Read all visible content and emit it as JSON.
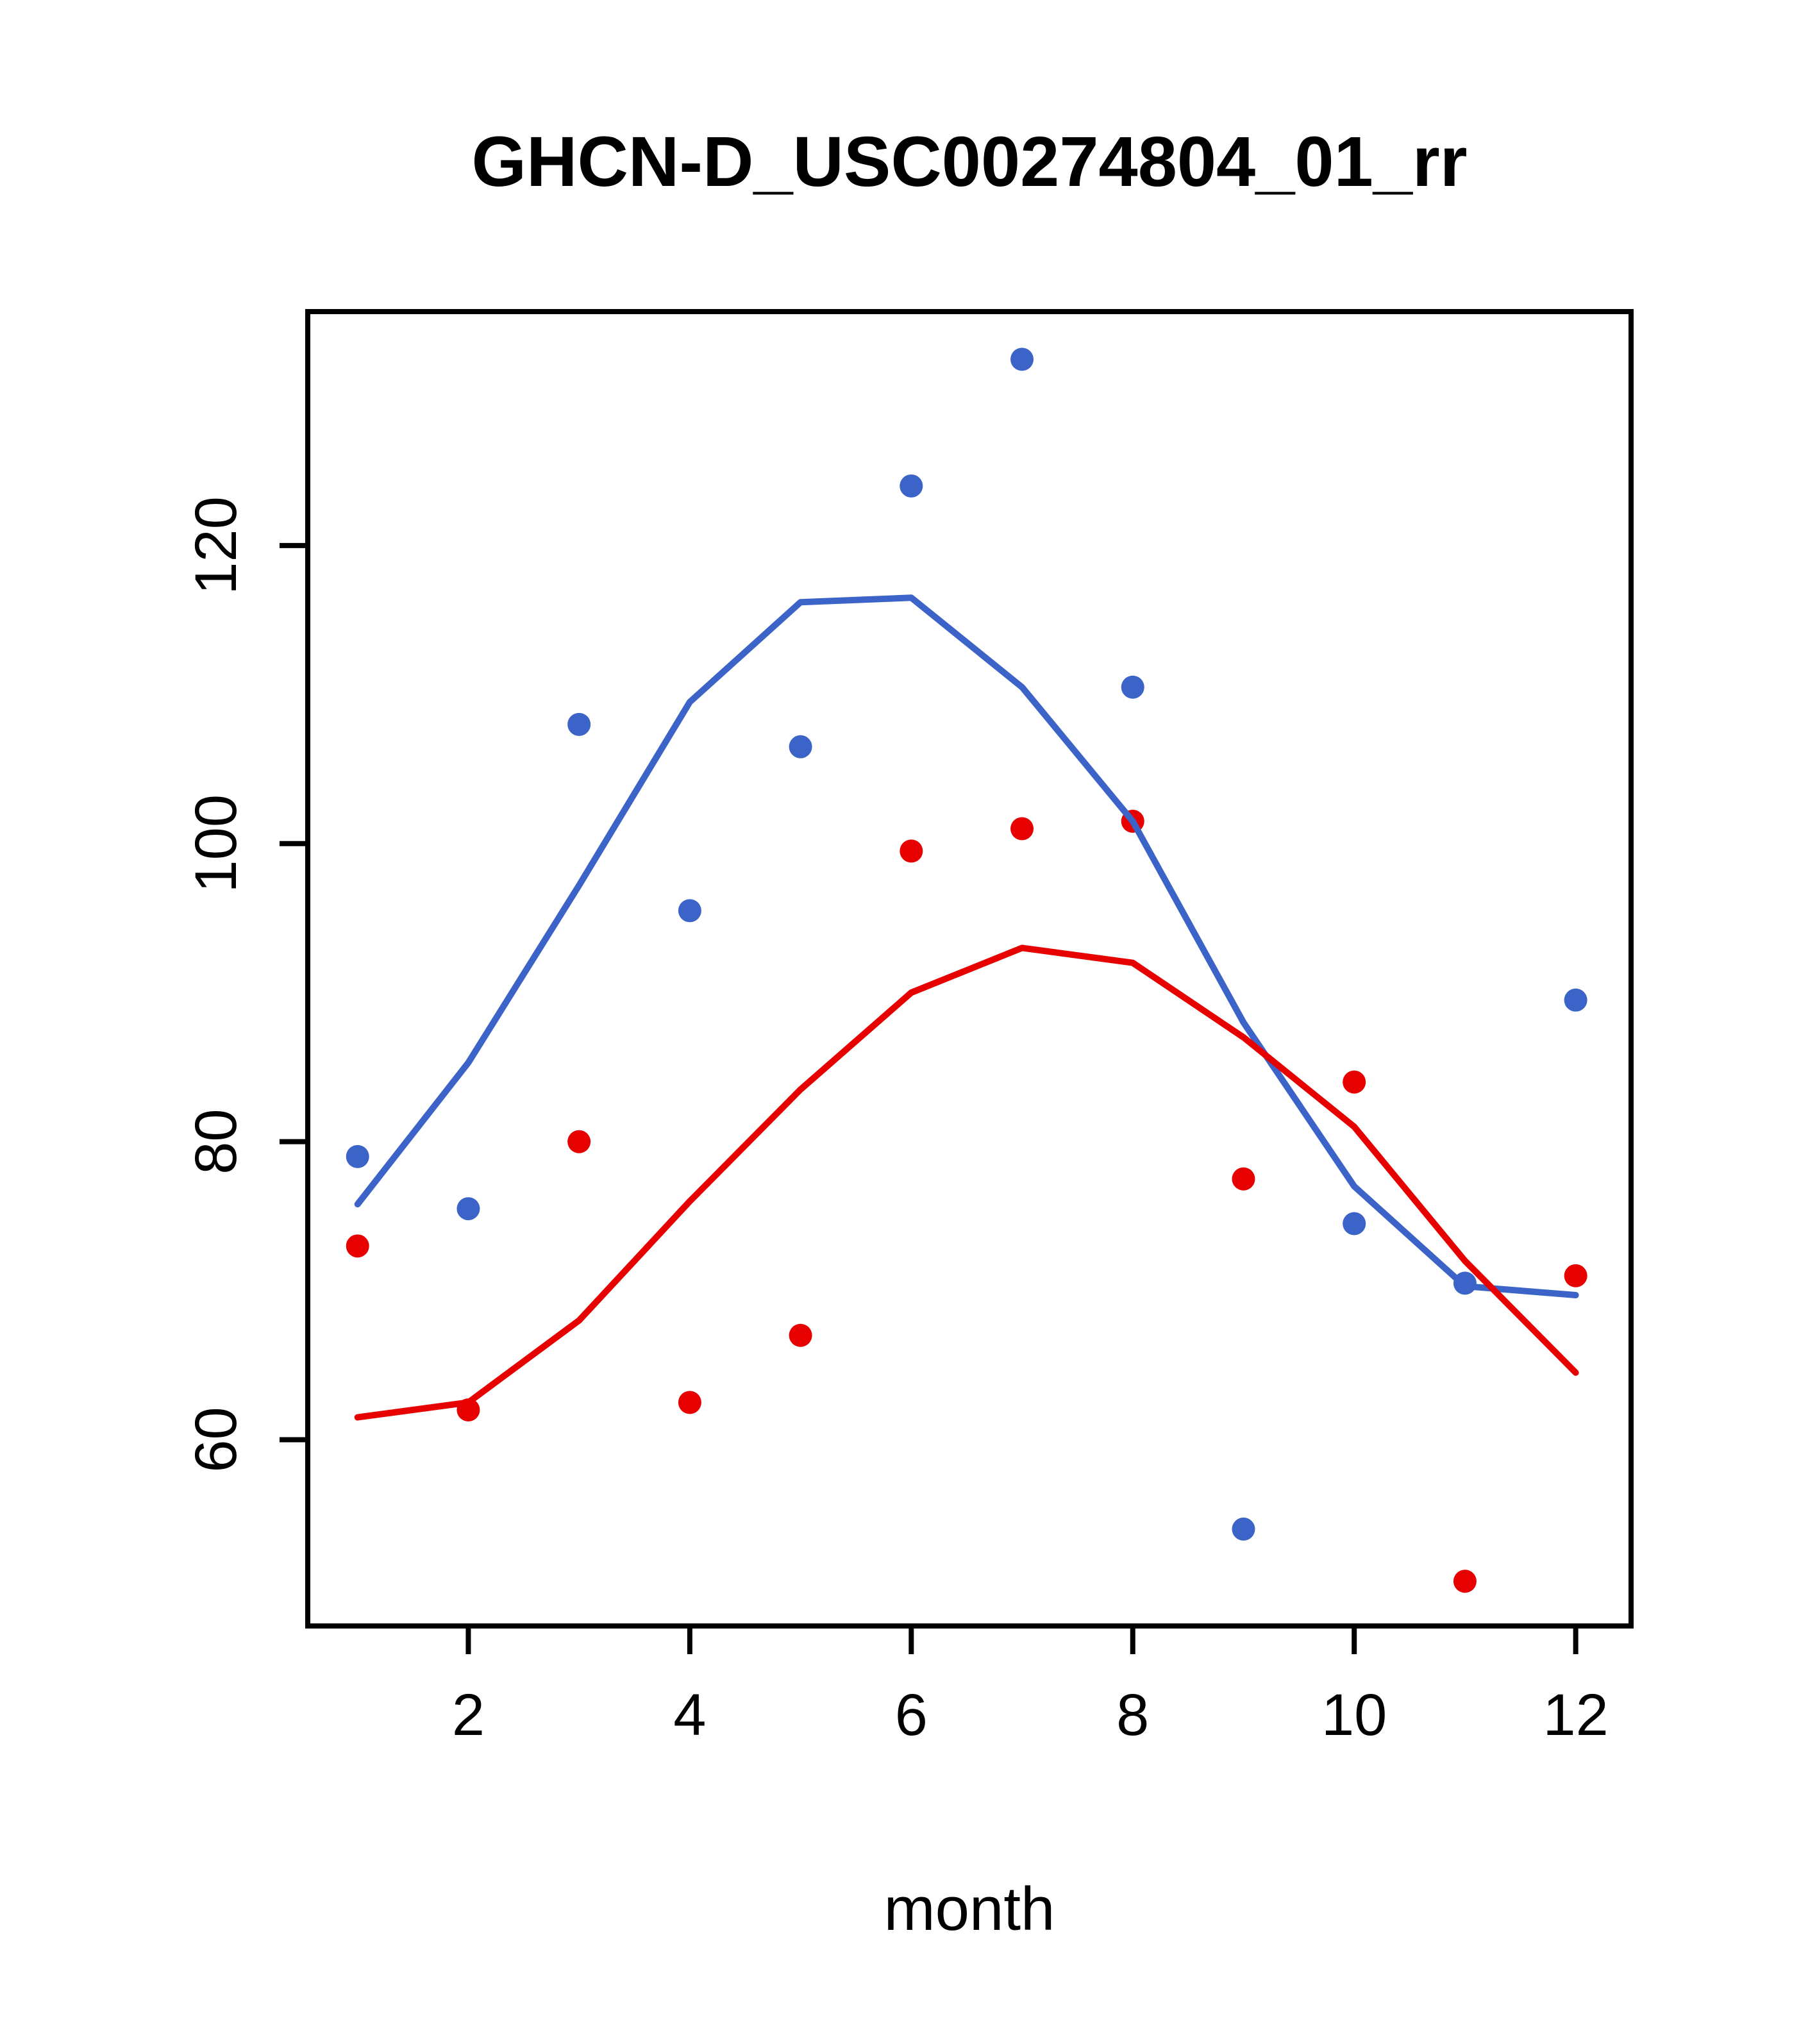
{
  "title": "GHCN-D_USC00274804_01_rr",
  "colors": {
    "blue": "#3C64C8",
    "red": "#E60000",
    "axis": "#000000",
    "background": "#FFFFFF"
  },
  "chart_data": {
    "type": "scatter",
    "title": "GHCN-D_USC00274804_01_rr",
    "xlabel": "month",
    "ylabel": "",
    "xlim": [
      0.55,
      12.5
    ],
    "ylim": [
      47.5,
      135.7
    ],
    "x_ticks": [
      2,
      4,
      6,
      8,
      10,
      12
    ],
    "y_ticks": [
      60,
      80,
      100,
      120
    ],
    "grid": false,
    "legend": "none",
    "x": [
      1,
      2,
      3,
      4,
      5,
      6,
      7,
      8,
      9,
      10,
      11,
      12
    ],
    "series": [
      {
        "name": "blue-points",
        "type": "points",
        "color_key": "blue",
        "values": [
          79,
          75.5,
          108,
          95.5,
          106.5,
          124,
          132.5,
          110.5,
          54,
          74.5,
          70.5,
          89.5
        ]
      },
      {
        "name": "red-points",
        "type": "points",
        "color_key": "red",
        "values": [
          73,
          62,
          80,
          62.5,
          67,
          99.5,
          101,
          101.5,
          77.5,
          84,
          50.5,
          71
        ]
      },
      {
        "name": "blue-smooth-line",
        "type": "line",
        "color_key": "blue",
        "values": [
          75.8,
          85.3,
          97.2,
          109.5,
          116.2,
          116.5,
          110.5,
          101.5,
          88,
          77,
          70.3,
          69.7
        ]
      },
      {
        "name": "red-smooth-line",
        "type": "line",
        "color_key": "red",
        "values": [
          61.5,
          62.5,
          68,
          76,
          83.5,
          90,
          93,
          92,
          87,
          81,
          72,
          64.5
        ]
      }
    ]
  }
}
